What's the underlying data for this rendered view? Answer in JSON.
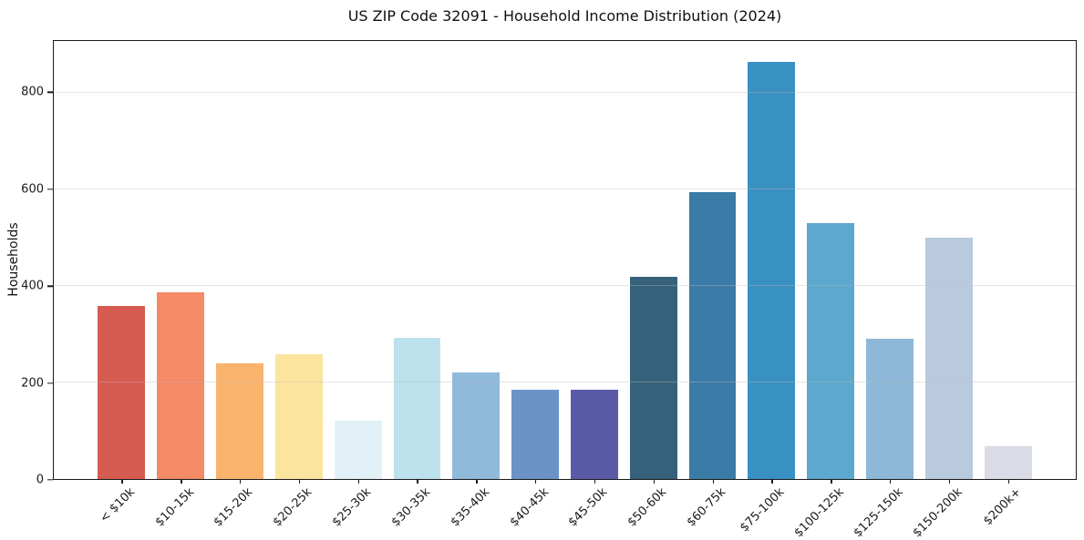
{
  "chart_data": {
    "type": "bar",
    "title": "US ZIP Code 32091 - Household Income Distribution (2024)",
    "xlabel": "",
    "ylabel": "Households",
    "categories": [
      "< $10k",
      "$10-15k",
      "$15-20k",
      "$20-25k",
      "$25-30k",
      "$30-35k",
      "$35-40k",
      "$40-45k",
      "$45-50k",
      "$50-60k",
      "$60-75k",
      "$75-100k",
      "$100-125k",
      "$125-150k",
      "$150-200k",
      "$200k+"
    ],
    "values": [
      358,
      387,
      240,
      258,
      120,
      292,
      220,
      185,
      185,
      420,
      595,
      865,
      530,
      290,
      500,
      68
    ],
    "bar_colors": [
      "#d65c52",
      "#f48a66",
      "#fab36c",
      "#fbe49d",
      "#e1f1f7",
      "#bde1ed",
      "#90bada",
      "#6b93c6",
      "#5a5ba6",
      "#36617a",
      "#3a7ba7",
      "#3990c3",
      "#5ca8ce",
      "#8db8d8",
      "#b9cade",
      "#d9dbe7"
    ],
    "ylim": [
      0,
      908
    ],
    "yticks": [
      0,
      200,
      400,
      600,
      800
    ],
    "grid": "horizontal-only",
    "gridlines_over_bars": true,
    "legend": "none",
    "background_color": "#ffffff",
    "spine_color": "#1a1a1a",
    "xtick_label_rotation_deg": 45
  }
}
